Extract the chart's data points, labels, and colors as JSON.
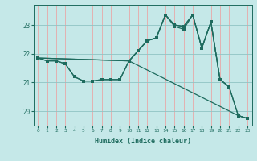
{
  "xlabel": "Humidex (Indice chaleur)",
  "bg_color": "#c5e8e8",
  "line_color": "#1e6b5e",
  "grid_color_v": "#e8a8a8",
  "grid_color_h": "#90c4c4",
  "xlim": [
    -0.5,
    23.5
  ],
  "ylim": [
    19.5,
    23.7
  ],
  "yticks": [
    20,
    21,
    22,
    23
  ],
  "xticks": [
    0,
    1,
    2,
    3,
    4,
    5,
    6,
    7,
    8,
    9,
    10,
    11,
    12,
    13,
    14,
    15,
    16,
    17,
    18,
    19,
    20,
    21,
    22,
    23
  ],
  "line_upper_x": [
    0,
    1,
    2,
    3,
    4,
    5,
    6,
    7,
    8,
    9,
    10,
    11,
    12,
    13,
    14,
    15,
    16,
    17,
    18,
    19,
    20,
    21
  ],
  "line_upper_y": [
    21.85,
    21.75,
    21.75,
    21.65,
    21.2,
    21.05,
    21.05,
    21.1,
    21.1,
    21.1,
    21.75,
    22.1,
    22.45,
    22.55,
    23.35,
    23.0,
    22.95,
    23.35,
    22.2,
    23.1,
    21.1,
    20.85
  ],
  "line_mid_x": [
    0,
    10,
    11,
    12,
    13,
    14,
    15,
    16,
    17,
    18,
    19,
    20,
    21,
    22,
    23
  ],
  "line_mid_y": [
    21.85,
    21.75,
    22.1,
    22.45,
    22.55,
    23.35,
    23.0,
    22.95,
    23.35,
    22.2,
    23.1,
    21.1,
    20.85,
    19.85,
    19.75
  ],
  "line_lower_x": [
    0,
    10,
    11,
    12,
    13,
    14,
    15,
    16,
    17,
    18,
    19,
    20,
    21,
    22,
    23
  ],
  "line_lower_y": [
    21.85,
    21.75,
    22.1,
    22.45,
    22.55,
    23.35,
    22.95,
    22.85,
    23.35,
    22.2,
    23.1,
    21.1,
    20.85,
    19.85,
    19.75
  ],
  "line_flat_x": [
    0,
    1,
    2,
    3,
    4,
    5,
    6,
    7,
    8,
    9,
    10,
    22,
    23
  ],
  "line_flat_y": [
    21.85,
    21.75,
    21.75,
    21.65,
    21.2,
    21.05,
    21.05,
    21.1,
    21.1,
    21.1,
    21.75,
    19.85,
    19.75
  ]
}
